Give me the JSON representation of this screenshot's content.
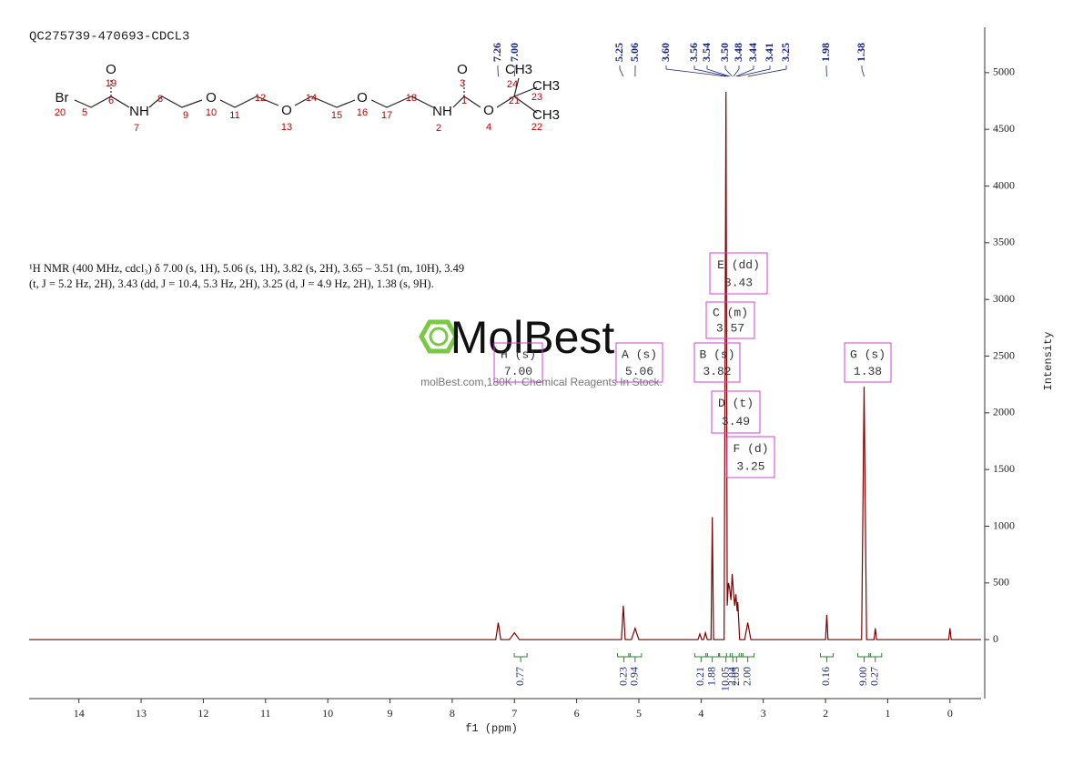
{
  "chart_data": {
    "type": "line",
    "title": "QC275739-470693-CDCL3",
    "x_label": "f1 (ppm)",
    "y_label": "Intensity",
    "xlim": [
      14.8,
      -0.5
    ],
    "xticks": [
      14,
      13,
      12,
      11,
      10,
      9,
      8,
      7,
      6,
      5,
      4,
      3,
      2,
      1,
      0
    ],
    "ylim": [
      -520,
      5400
    ],
    "yticks": [
      0,
      500,
      1000,
      1500,
      2000,
      2500,
      3000,
      3500,
      4000,
      4500,
      5000
    ],
    "series": [
      {
        "color": "#800000",
        "x": [
          14.8,
          7.3,
          7.26,
          7.22,
          7.08,
          7.0,
          6.92,
          5.28,
          5.25,
          5.22,
          5.12,
          5.06,
          5.0,
          4.05,
          4.02,
          3.99,
          3.96,
          3.93,
          3.9,
          3.84,
          3.82,
          3.8,
          3.63,
          3.6,
          3.58,
          3.56,
          3.54,
          3.52,
          3.5,
          3.48,
          3.46,
          3.44,
          3.42,
          3.41,
          3.38,
          3.3,
          3.25,
          3.2,
          2.0,
          1.98,
          1.96,
          1.42,
          1.38,
          1.34,
          1.22,
          1.2,
          1.18,
          0.02,
          0,
          -0.02,
          -0.5
        ],
        "values": [
          0,
          0,
          150,
          0,
          0,
          60,
          0,
          0,
          300,
          0,
          0,
          100,
          0,
          0,
          50,
          0,
          0,
          60,
          0,
          0,
          1080,
          0,
          0,
          4830,
          300,
          500,
          450,
          350,
          580,
          420,
          300,
          400,
          250,
          330,
          0,
          0,
          150,
          0,
          0,
          220,
          0,
          0,
          2230,
          0,
          0,
          100,
          0,
          0,
          100,
          0,
          0
        ]
      }
    ],
    "peak_labels": [
      {
        "value": 7.26,
        "label": "7.26"
      },
      {
        "value": 7.0,
        "label": "7.00"
      },
      {
        "value": 5.25,
        "label": "5.25"
      },
      {
        "value": 5.06,
        "label": "5.06"
      },
      {
        "value": 3.6,
        "label": "3.60"
      },
      {
        "value": 3.56,
        "label": "3.56"
      },
      {
        "value": 3.54,
        "label": "3.54"
      },
      {
        "value": 3.5,
        "label": "3.50"
      },
      {
        "value": 3.48,
        "label": "3.48"
      },
      {
        "value": 3.44,
        "label": "3.44"
      },
      {
        "value": 3.41,
        "label": "3.41"
      },
      {
        "value": 3.25,
        "label": "3.25"
      },
      {
        "value": 1.98,
        "label": "1.98"
      },
      {
        "value": 1.38,
        "label": "1.38"
      }
    ],
    "integrals": {
      "x": [
        6.9,
        5.24,
        5.06,
        4.0,
        3.82,
        3.6,
        3.49,
        3.43,
        3.25,
        1.98,
        1.38,
        1.2
      ],
      "values": [
        0.77,
        0.23,
        0.94,
        0.21,
        1.88,
        10.05,
        2.04,
        2.05,
        2.0,
        0.16,
        9.0,
        0.27
      ],
      "value_labels": [
        "0.77",
        "0.23",
        "0.94",
        "0.21",
        "1.88",
        "10.05",
        "2.04",
        "2.05",
        "2.00",
        "0.16",
        "9.00",
        "0.27"
      ]
    },
    "multiplets": [
      {
        "label": "E (dd)",
        "shift": "3.43"
      },
      {
        "label": "C (m)",
        "shift": "3.57"
      },
      {
        "label": "H (s)",
        "shift": "7.00"
      },
      {
        "label": "A (s)",
        "shift": "5.06"
      },
      {
        "label": "B (s)",
        "shift": "3.82"
      },
      {
        "label": "G (s)",
        "shift": "1.38"
      },
      {
        "label": "D (t)",
        "shift": "3.49"
      },
      {
        "label": "F (d)",
        "shift": "3.25"
      }
    ],
    "nmr_text": [
      "¹H NMR (400 MHz, cdcl₃) δ 7.00 (s, 1H), 5.06 (s, 1H), 3.82 (s, 2H), 3.65 – 3.51 (m, 10H), 3.49",
      "(t, J = 5.2 Hz, 2H), 3.43 (dd, J = 10.4, 5.3 Hz, 2H), 3.25 (d, J = 4.9 Hz, 2H), 1.38 (s, 9H)."
    ],
    "watermark": "MolBest",
    "watermark_sub": "molBest.com,180K+ Chemical Reagents In Stock.",
    "structure": {
      "atoms": [
        "Br",
        "O",
        "NH",
        "O",
        "O",
        "O",
        "NH",
        "O",
        "O",
        "CH3",
        "CH3",
        "CH3"
      ],
      "numbers": [
        "20",
        "5",
        "6",
        "19",
        "7",
        "8",
        "9",
        "10",
        "11",
        "12",
        "13",
        "14",
        "15",
        "16",
        "17",
        "18",
        "2",
        "1",
        "3",
        "4",
        "21",
        "24",
        "23",
        "22"
      ]
    }
  }
}
